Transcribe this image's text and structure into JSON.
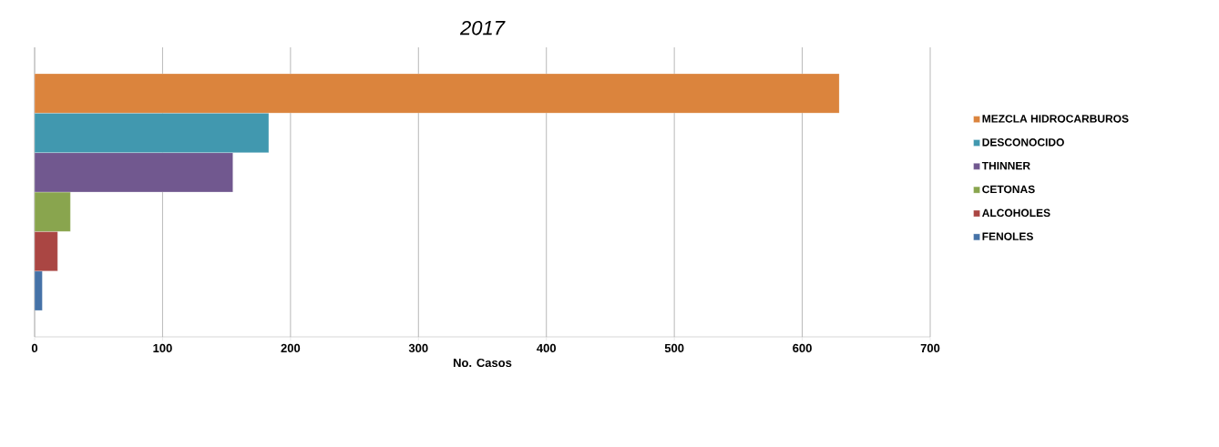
{
  "chart_data": {
    "type": "bar",
    "orientation": "horizontal",
    "title": "2017",
    "xlabel": "No.  Casos",
    "categories": [
      null
    ],
    "series": [
      {
        "name": "MEZCLA HIDROCARBUROS",
        "color": "#db843d",
        "values": [
          629
        ]
      },
      {
        "name": "DESCONOCIDO",
        "color": "#4198af",
        "values": [
          183
        ]
      },
      {
        "name": "THINNER",
        "color": "#71588f",
        "values": [
          155
        ]
      },
      {
        "name": "CETONAS",
        "color": "#89a54e",
        "values": [
          28
        ]
      },
      {
        "name": "ALCOHOLES",
        "color": "#aa4643",
        "values": [
          18
        ]
      },
      {
        "name": "FENOLES",
        "color": "#4572a7",
        "values": [
          6
        ]
      }
    ],
    "xlim": [
      0,
      700
    ],
    "xticks": [
      0,
      100,
      200,
      300,
      400,
      500,
      600,
      700
    ],
    "grid": "x",
    "legend": "right",
    "tick_labels": "x"
  }
}
